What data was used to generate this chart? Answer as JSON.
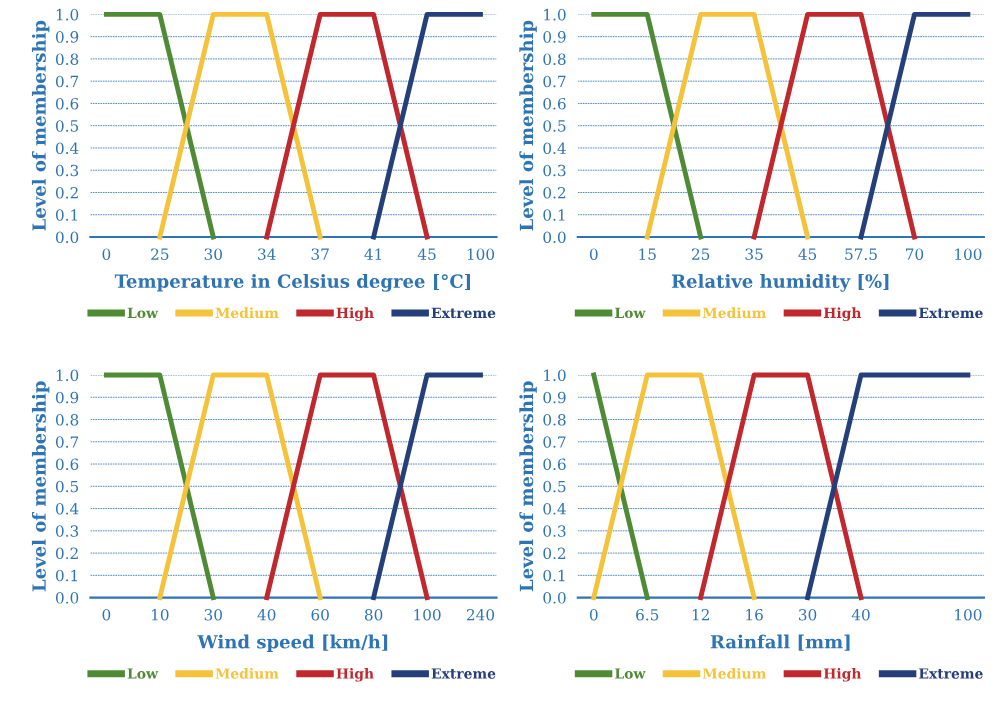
{
  "chart_data": [
    {
      "type": "line",
      "xlabel": "Temperature in Celsius degree [°C]",
      "ylabel": "Level of membership",
      "categories": [
        "0",
        "25",
        "30",
        "34",
        "37",
        "41",
        "45",
        "100"
      ],
      "ylim": [
        0,
        1
      ],
      "yticks": [
        {
          "value": 0,
          "label": "0.0"
        },
        {
          "value": 0.1,
          "label": "0.1"
        },
        {
          "value": 0.2,
          "label": "0.2"
        },
        {
          "value": 0.3,
          "label": "0.3"
        },
        {
          "value": 0.4,
          "label": "0.4"
        },
        {
          "value": 0.5,
          "label": "0.5"
        },
        {
          "value": 0.6,
          "label": "0.6"
        },
        {
          "value": 0.7,
          "label": "0.7"
        },
        {
          "value": 0.8,
          "label": "0.8"
        },
        {
          "value": 0.9,
          "label": "0.9"
        },
        {
          "value": 1,
          "label": "1.0"
        }
      ],
      "grid": "y",
      "legend": "bottom",
      "series": [
        {
          "name": "Low",
          "color": "#4f8a35",
          "values": [
            1,
            1,
            0,
            null,
            null,
            null,
            null,
            null
          ]
        },
        {
          "name": "Medium",
          "color": "#f5c33b",
          "values": [
            null,
            0,
            1,
            1,
            0,
            null,
            null,
            null
          ]
        },
        {
          "name": "High",
          "color": "#c0282d",
          "values": [
            null,
            null,
            null,
            0,
            1,
            1,
            0,
            null
          ]
        },
        {
          "name": "Extreme",
          "color": "#243f7a",
          "values": [
            null,
            null,
            null,
            null,
            null,
            0,
            1,
            1
          ]
        }
      ]
    },
    {
      "type": "line",
      "xlabel": "Relative humidity [%]",
      "ylabel": "Level of membership",
      "categories": [
        "0",
        "15",
        "25",
        "35",
        "45",
        "57.5",
        "70",
        "100"
      ],
      "ylim": [
        0,
        1
      ],
      "yticks": [
        {
          "value": 0,
          "label": "0.0"
        },
        {
          "value": 0.1,
          "label": "0.1"
        },
        {
          "value": 0.2,
          "label": "0.2"
        },
        {
          "value": 0.3,
          "label": "0.3"
        },
        {
          "value": 0.4,
          "label": "0.4"
        },
        {
          "value": 0.5,
          "label": "0.5"
        },
        {
          "value": 0.6,
          "label": "0.6"
        },
        {
          "value": 0.7,
          "label": "0.7"
        },
        {
          "value": 0.8,
          "label": "0.8"
        },
        {
          "value": 0.9,
          "label": "0.9"
        },
        {
          "value": 1,
          "label": "1.0"
        }
      ],
      "grid": "y",
      "legend": "bottom",
      "series": [
        {
          "name": "Low",
          "color": "#4f8a35",
          "values": [
            1,
            1,
            0,
            null,
            null,
            null,
            null,
            null
          ]
        },
        {
          "name": "Medium",
          "color": "#f5c33b",
          "values": [
            null,
            0,
            1,
            1,
            0,
            null,
            null,
            null
          ]
        },
        {
          "name": "High",
          "color": "#c0282d",
          "values": [
            null,
            null,
            null,
            0,
            1,
            1,
            0,
            null
          ]
        },
        {
          "name": "Extreme",
          "color": "#243f7a",
          "values": [
            null,
            null,
            null,
            null,
            null,
            0,
            1,
            1
          ]
        }
      ]
    },
    {
      "type": "line",
      "xlabel": "Wind speed [km/h]",
      "ylabel": "Level of membership",
      "categories": [
        "0",
        "10",
        "30",
        "40",
        "60",
        "80",
        "100",
        "240"
      ],
      "ylim": [
        0,
        1
      ],
      "yticks": [
        {
          "value": 0,
          "label": "0.0"
        },
        {
          "value": 0.1,
          "label": "0.1"
        },
        {
          "value": 0.2,
          "label": "0.2"
        },
        {
          "value": 0.3,
          "label": "0.3"
        },
        {
          "value": 0.4,
          "label": "0.4"
        },
        {
          "value": 0.5,
          "label": "0.5"
        },
        {
          "value": 0.6,
          "label": "0.6"
        },
        {
          "value": 0.7,
          "label": "0.7"
        },
        {
          "value": 0.8,
          "label": "0.8"
        },
        {
          "value": 0.9,
          "label": "0.9"
        },
        {
          "value": 1,
          "label": "1.0"
        }
      ],
      "grid": "y",
      "legend": "bottom",
      "series": [
        {
          "name": "Low",
          "color": "#4f8a35",
          "values": [
            1,
            1,
            0,
            null,
            null,
            null,
            null,
            null
          ]
        },
        {
          "name": "Medium",
          "color": "#f5c33b",
          "values": [
            null,
            0,
            1,
            1,
            0,
            null,
            null,
            null
          ]
        },
        {
          "name": "High",
          "color": "#c0282d",
          "values": [
            null,
            null,
            null,
            0,
            1,
            1,
            0,
            null
          ]
        },
        {
          "name": "Extreme",
          "color": "#243f7a",
          "values": [
            null,
            null,
            null,
            null,
            null,
            0,
            1,
            1
          ]
        }
      ]
    },
    {
      "type": "line",
      "xlabel": "Rainfall [mm]",
      "ylabel": "Level of membership",
      "categories": [
        "0",
        "6.5",
        "12",
        "16",
        "30",
        "40",
        null,
        "100"
      ],
      "ylim": [
        0,
        1
      ],
      "yticks": [
        {
          "value": 0,
          "label": "0.0"
        },
        {
          "value": 0.1,
          "label": "0.1"
        },
        {
          "value": 0.2,
          "label": "0.2"
        },
        {
          "value": 0.3,
          "label": "0.3"
        },
        {
          "value": 0.4,
          "label": "0.4"
        },
        {
          "value": 0.5,
          "label": "0.5"
        },
        {
          "value": 0.6,
          "label": "0.6"
        },
        {
          "value": 0.7,
          "label": "0.7"
        },
        {
          "value": 0.8,
          "label": "0.8"
        },
        {
          "value": 0.9,
          "label": "0.9"
        },
        {
          "value": 1,
          "label": "1.0"
        }
      ],
      "grid": "y",
      "legend": "bottom",
      "series": [
        {
          "name": "Low",
          "color": "#4f8a35",
          "values": [
            1,
            0,
            null,
            null,
            null,
            null,
            null,
            null
          ]
        },
        {
          "name": "Medium",
          "color": "#f5c33b",
          "values": [
            0,
            1,
            1,
            0,
            null,
            null,
            null,
            null
          ]
        },
        {
          "name": "High",
          "color": "#c0282d",
          "values": [
            null,
            null,
            0,
            1,
            1,
            0,
            null,
            null
          ]
        },
        {
          "name": "Extreme",
          "color": "#243f7a",
          "values": [
            null,
            null,
            null,
            null,
            0,
            1,
            1,
            1
          ]
        }
      ]
    }
  ]
}
